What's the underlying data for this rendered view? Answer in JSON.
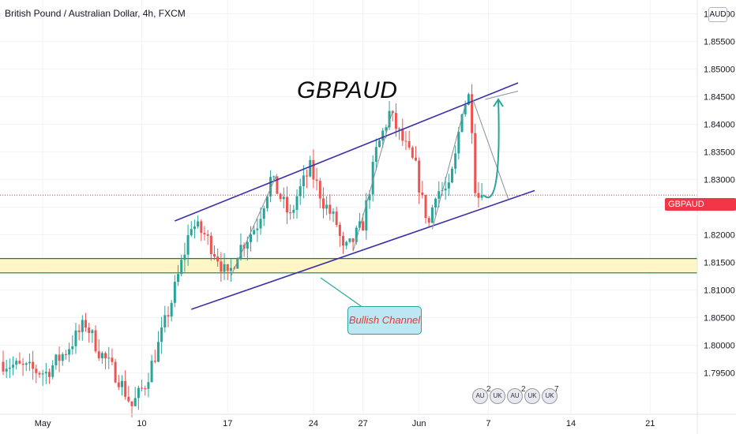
{
  "header": {
    "title": "British Pound / Australian Dollar, 4h, FXCM"
  },
  "chart_title": "GBPAUD",
  "currency_button": "AUD",
  "price_tag": {
    "symbol": "GBPAUD",
    "value": "1.82718",
    "price": 1.82718
  },
  "annotation": {
    "label": "Bullish Channel"
  },
  "events": [
    {
      "badge": "2"
    },
    {
      "badge": "2"
    },
    {
      "badge": "7"
    }
  ],
  "colors": {
    "up": "#26a69a",
    "down": "#ef5350",
    "channel": "#3d2fa8",
    "zone_fill": "#fff6c8",
    "zone_line": "#1e7a4a",
    "arrow": "#26a69a",
    "price_line": "#f23645"
  },
  "chart_data": {
    "type": "candlestick",
    "symbol": "GBPAUD",
    "timeframe": "4h",
    "ylim": [
      1.7875,
      1.8625
    ],
    "yticks": [
      1.795,
      1.8,
      1.805,
      1.81,
      1.815,
      1.82,
      1.825,
      1.83,
      1.835,
      1.84,
      1.845,
      1.85,
      1.855,
      1.86
    ],
    "ytick_labels": [
      "1.79500",
      "1.80000",
      "1.80500",
      "1.81000",
      "1.81500",
      "1.82000",
      "1.82500",
      "1.83000",
      "1.83500",
      "1.84000",
      "1.84500",
      "1.85000",
      "1.85500",
      "1.86000"
    ],
    "xtick_labels": [
      "May",
      "10",
      "17",
      "24",
      "27",
      "Jun",
      "7",
      "14",
      "21"
    ],
    "xtick_idx": [
      12,
      42,
      68,
      94,
      109,
      126,
      147,
      172,
      196
    ],
    "n_candles": 205,
    "waypoints": [
      [
        0,
        1.797
      ],
      [
        6,
        1.796
      ],
      [
        14,
        1.795
      ],
      [
        20,
        1.799
      ],
      [
        26,
        1.804
      ],
      [
        30,
        1.799
      ],
      [
        36,
        1.794
      ],
      [
        40,
        1.789
      ],
      [
        44,
        1.793
      ],
      [
        48,
        1.8
      ],
      [
        52,
        1.808
      ],
      [
        56,
        1.817
      ],
      [
        58,
        1.822
      ],
      [
        62,
        1.82
      ],
      [
        66,
        1.816
      ],
      [
        69,
        1.812
      ],
      [
        72,
        1.817
      ],
      [
        78,
        1.822
      ],
      [
        82,
        1.83
      ],
      [
        84,
        1.828
      ],
      [
        88,
        1.823
      ],
      [
        90,
        1.827
      ],
      [
        94,
        1.832
      ],
      [
        98,
        1.826
      ],
      [
        102,
        1.822
      ],
      [
        104,
        1.817
      ],
      [
        106,
        1.818
      ],
      [
        110,
        1.822
      ],
      [
        114,
        1.835
      ],
      [
        118,
        1.842
      ],
      [
        122,
        1.837
      ],
      [
        126,
        1.832
      ],
      [
        128,
        1.826
      ],
      [
        130,
        1.822
      ],
      [
        132,
        1.828
      ],
      [
        136,
        1.828
      ],
      [
        138,
        1.834
      ],
      [
        140,
        1.843
      ],
      [
        142,
        1.845
      ],
      [
        143,
        1.84
      ],
      [
        144,
        1.829
      ],
      [
        145,
        1.827
      ]
    ],
    "current_price": 1.82718,
    "support_zone": [
      1.8131,
      1.8157
    ],
    "channel": {
      "upper": [
        [
          52,
          1.8225
        ],
        [
          156,
          1.8475
        ]
      ],
      "lower": [
        [
          57,
          1.8065
        ],
        [
          161,
          1.828
        ]
      ]
    }
  }
}
